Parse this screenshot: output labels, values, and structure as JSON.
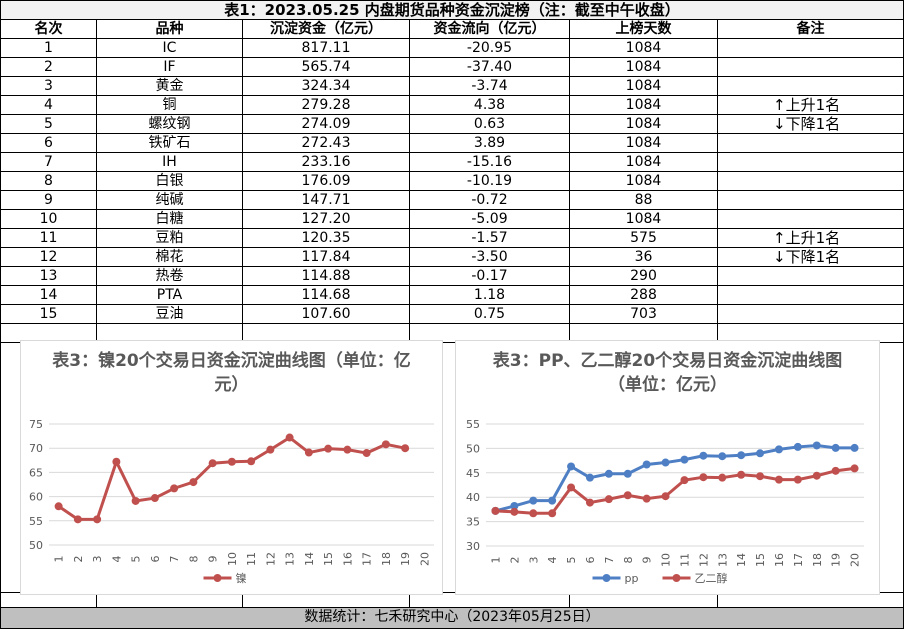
{
  "table": {
    "title": "表1：2023.05.25 内盘期货品种资金沉淀榜（注：截至中午收盘）",
    "headers": [
      "名次",
      "品种",
      "沉淀资金（亿元）",
      "资金流向（亿元）",
      "上榜天数",
      "备注"
    ],
    "rows": [
      {
        "rank": "1",
        "name": "IC",
        "funds": "817.11",
        "flow": "-20.95",
        "days": "1084"
      },
      {
        "rank": "2",
        "name": "IF",
        "funds": "565.74",
        "flow": "-37.40",
        "days": "1084"
      },
      {
        "rank": "3",
        "name": "黄金",
        "funds": "324.34",
        "flow": "-3.74",
        "days": "1084"
      },
      {
        "rank": "4",
        "name": "铜",
        "funds": "279.28",
        "flow": "4.38",
        "days": "1084",
        "note": "↑上升1名"
      },
      {
        "rank": "5",
        "name": "螺纹钢",
        "funds": "274.09",
        "flow": "0.63",
        "days": "1084",
        "note": "↓下降1名"
      },
      {
        "rank": "6",
        "name": "铁矿石",
        "funds": "272.43",
        "flow": "3.89",
        "days": "1084"
      },
      {
        "rank": "7",
        "name": "IH",
        "funds": "233.16",
        "flow": "-15.16",
        "days": "1084"
      },
      {
        "rank": "8",
        "name": "白银",
        "funds": "176.09",
        "flow": "-10.19",
        "days": "1084"
      },
      {
        "rank": "9",
        "name": "纯碱",
        "funds": "147.71",
        "flow": "-0.72",
        "days": "88"
      },
      {
        "rank": "10",
        "name": "白糖",
        "funds": "127.20",
        "flow": "-5.09",
        "days": "1084"
      },
      {
        "rank": "11",
        "name": "豆粕",
        "funds": "120.35",
        "flow": "-1.57",
        "days": "575",
        "note": "↑上升1名"
      },
      {
        "rank": "12",
        "name": "棉花",
        "funds": "117.84",
        "flow": "-3.50",
        "days": "36",
        "note": "↓下降1名"
      },
      {
        "rank": "13",
        "name": "热卷",
        "funds": "114.88",
        "flow": "-0.17",
        "days": "290"
      },
      {
        "rank": "14",
        "name": "PTA",
        "funds": "114.68",
        "flow": "1.18",
        "days": "288"
      },
      {
        "rank": "15",
        "name": "豆油",
        "funds": "107.60",
        "flow": "0.75",
        "days": "703"
      }
    ],
    "footer": "数据统计：七禾研究中心（2023年05月25日）"
  },
  "chart_data": [
    {
      "type": "line",
      "title": "表3：镍20个交易日资金沉淀曲线图（单位：亿元）",
      "categories": [
        "1",
        "2",
        "3",
        "4",
        "5",
        "6",
        "7",
        "8",
        "9",
        "10",
        "11",
        "12",
        "13",
        "14",
        "15",
        "16",
        "17",
        "18",
        "19",
        "20"
      ],
      "series": [
        {
          "name": "镍",
          "color": "#c0504d",
          "values": [
            58,
            55.3,
            55.3,
            67.2,
            59.1,
            59.7,
            61.7,
            63,
            66.9,
            67.2,
            67.3,
            69.7,
            72.2,
            69.1,
            69.9,
            69.7,
            69,
            70.8,
            70,
            null
          ]
        }
      ],
      "ylim": [
        50,
        75
      ],
      "yticks": [
        50,
        55,
        60,
        65,
        70,
        75
      ],
      "grid": true,
      "legend": "bottom"
    },
    {
      "type": "line",
      "title": "表3：PP、乙二醇20个交易日资金沉淀曲线图（单位：亿元）",
      "categories": [
        "1",
        "2",
        "3",
        "4",
        "5",
        "6",
        "7",
        "8",
        "9",
        "10",
        "11",
        "12",
        "13",
        "14",
        "15",
        "16",
        "17",
        "18",
        "19",
        "20"
      ],
      "series": [
        {
          "name": "pp",
          "color": "#4e7fc4",
          "values": [
            37.2,
            38.2,
            39.3,
            39.3,
            46.3,
            44,
            44.8,
            44.8,
            46.7,
            47.1,
            47.7,
            48.5,
            48.4,
            48.6,
            49,
            49.8,
            50.3,
            50.6,
            50.1,
            50.1
          ]
        },
        {
          "name": "乙二醇",
          "color": "#c0504d",
          "values": [
            37.2,
            37,
            36.7,
            36.7,
            42,
            38.9,
            39.6,
            40.4,
            39.7,
            40.2,
            43.5,
            44.1,
            44,
            44.6,
            44.3,
            43.6,
            43.6,
            44.4,
            45.4,
            45.9
          ]
        }
      ],
      "ylim": [
        30,
        55
      ],
      "yticks": [
        30,
        35,
        40,
        45,
        50,
        55
      ],
      "grid": true,
      "legend": "bottom"
    }
  ]
}
